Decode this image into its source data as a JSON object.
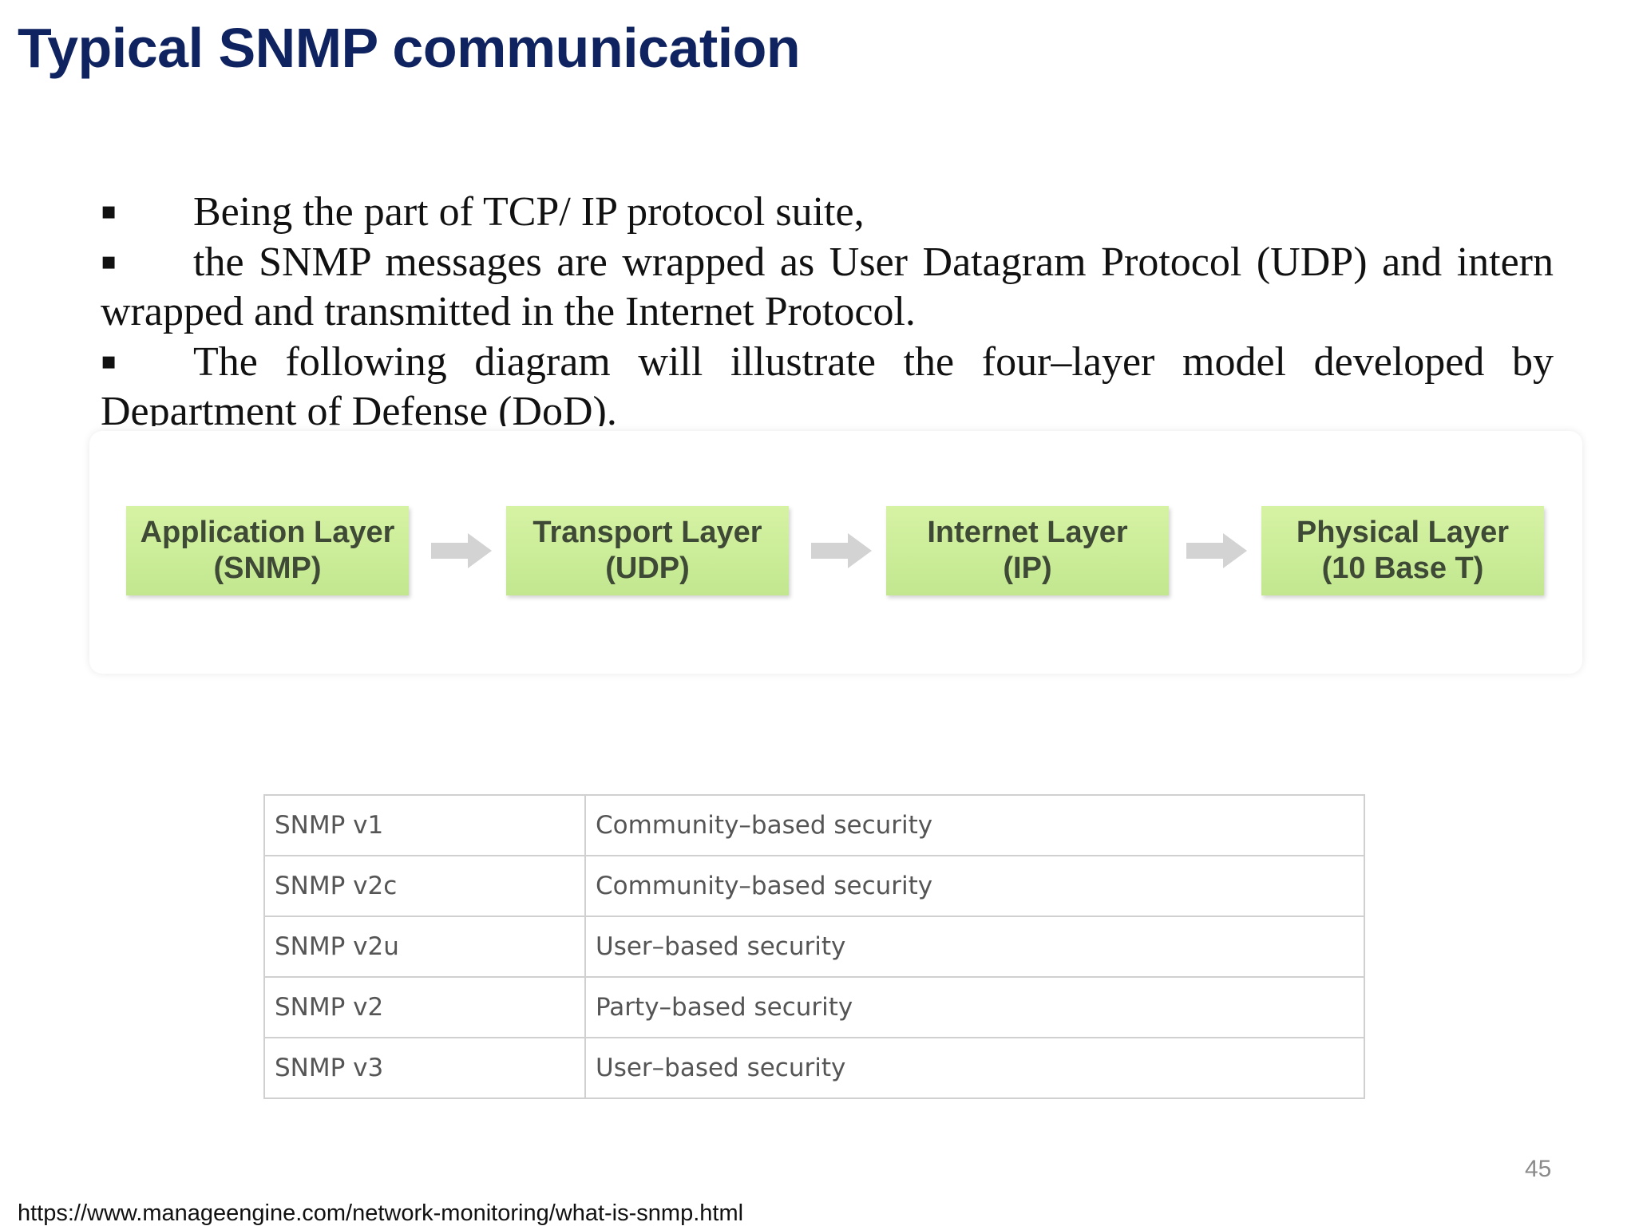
{
  "title": "Typical SNMP communication",
  "bullets": [
    "Being the part of TCP/ IP protocol suite,",
    "the SNMP messages are wrapped as User Datagram Protocol (UDP) and intern wrapped and transmitted in the Internet Protocol.",
    "The following diagram will illustrate the four–layer model developed by Department of Defense (DoD)."
  ],
  "bullet_symbol": "▪",
  "diagram": {
    "layers": [
      {
        "name": "Application Layer",
        "protocol": "(SNMP)"
      },
      {
        "name": "Transport Layer",
        "protocol": "(UDP)"
      },
      {
        "name": "Internet Layer",
        "protocol": "(IP)"
      },
      {
        "name": "Physical Layer",
        "protocol": "(10 Base T)"
      }
    ],
    "box_color": "#c8eb95",
    "arrow_color": "#d3d3d3"
  },
  "table": {
    "rows": [
      {
        "version": "SNMP v1",
        "security": "Community–based security"
      },
      {
        "version": "SNMP v2c",
        "security": "Community–based security"
      },
      {
        "version": "SNMP v2u",
        "security": "User–based security"
      },
      {
        "version": "SNMP v2",
        "security": "Party–based security"
      },
      {
        "version": "SNMP v3",
        "security": "User–based security"
      }
    ]
  },
  "page_number": "45",
  "source_url": "https://www.manageengine.com/network-monitoring/what-is-snmp.html",
  "colors": {
    "title": "#0f2360",
    "body_text": "#111111",
    "table_text": "#555555"
  }
}
